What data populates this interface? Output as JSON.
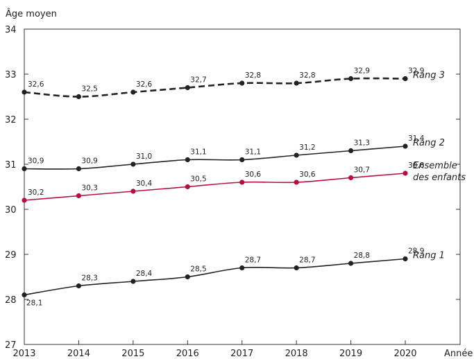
{
  "chart_data": {
    "type": "line",
    "title": "",
    "ylabel": "Âge moyen",
    "xlabel": "Année",
    "x": [
      2013,
      2014,
      2015,
      2016,
      2017,
      2018,
      2019,
      2020
    ],
    "ylim": [
      27,
      34
    ],
    "yticks": [
      27,
      28,
      29,
      30,
      31,
      32,
      33,
      34
    ],
    "grid": false,
    "legend": "inline-right",
    "series": [
      {
        "name": "Rang 3",
        "color": "#222222",
        "dashed": true,
        "values": [
          32.6,
          32.5,
          32.6,
          32.7,
          32.8,
          32.8,
          32.9,
          32.9
        ],
        "labels": [
          "32,6",
          "32,5",
          "32,6",
          "32,7",
          "32,8",
          "32,8",
          "32,9",
          "32,9"
        ]
      },
      {
        "name": "Rang 2",
        "color": "#222222",
        "dashed": false,
        "values": [
          30.9,
          30.9,
          31.0,
          31.1,
          31.1,
          31.2,
          31.3,
          31.4
        ],
        "labels": [
          "30,9",
          "30,9",
          "31,0",
          "31,1",
          "31,1",
          "31,2",
          "31,3",
          "31,4"
        ]
      },
      {
        "name": "Ensemble des enfants",
        "name_lines": [
          "Ensemble",
          "des enfants"
        ],
        "color": "#b5103c",
        "dashed": false,
        "values": [
          30.2,
          30.3,
          30.4,
          30.5,
          30.6,
          30.6,
          30.7,
          30.8
        ],
        "labels": [
          "30,2",
          "30,3",
          "30,4",
          "30,5",
          "30,6",
          "30,6",
          "30,7",
          "30,8"
        ]
      },
      {
        "name": "Rang 1",
        "color": "#222222",
        "dashed": false,
        "values": [
          28.1,
          28.3,
          28.4,
          28.5,
          28.7,
          28.7,
          28.8,
          28.9
        ],
        "labels": [
          "28,1",
          "28,3",
          "28,4",
          "28,5",
          "28,7",
          "28,7",
          "28,8",
          "28,9"
        ]
      }
    ]
  }
}
